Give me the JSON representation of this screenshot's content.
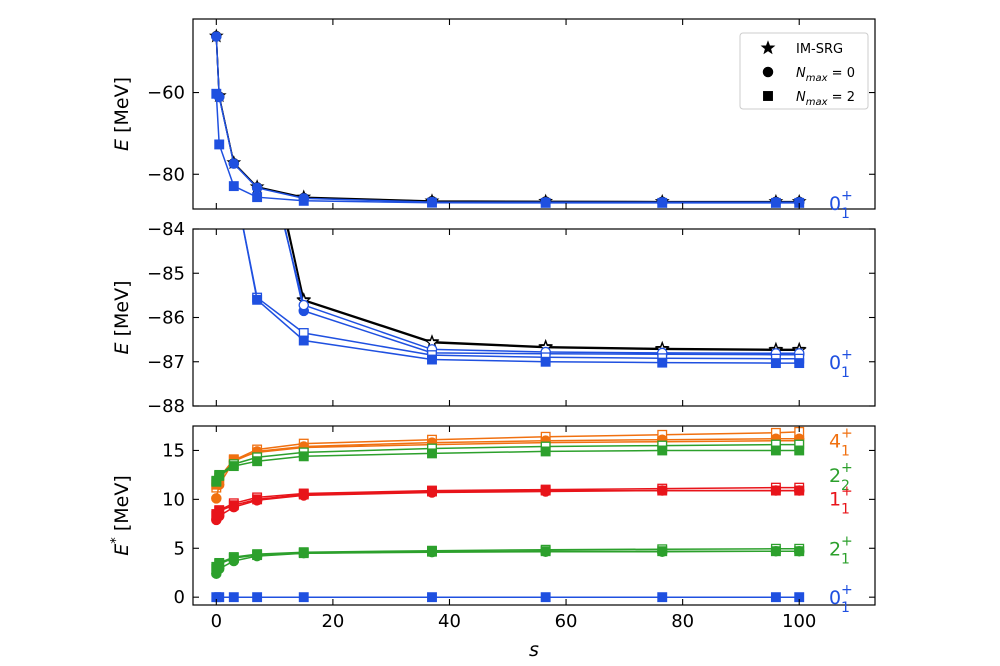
{
  "chart_data": [
    {
      "type": "line",
      "panel": "top",
      "ylabel": "E [MeV]",
      "ylabel_var": "E",
      "ylabel_unit": "[MeV]",
      "ylim": [
        -88.5,
        -42
      ],
      "yticks": [
        -60,
        -80
      ],
      "yticklabels": [
        "−60",
        "−80"
      ],
      "legend": {
        "placement": "top-right",
        "entries": [
          {
            "marker": "star",
            "label": "IM-SRG"
          },
          {
            "marker": "circle",
            "label": "N_max = 0"
          },
          {
            "marker": "square",
            "label": "N_max = 2"
          }
        ]
      },
      "state_labels": [
        {
          "label": "0",
          "sup": "+",
          "sub": "1",
          "color": "#1f50e0",
          "y": -87.0
        }
      ],
      "series": [
        {
          "marker": "star",
          "color": "#000000",
          "fill": true,
          "x": [
            0,
            0.5,
            3,
            7,
            15,
            37,
            56.5,
            76.5,
            96,
            100
          ],
          "y": [
            -46.2,
            -60.8,
            -77.2,
            -83.1,
            -85.6,
            -86.55,
            -86.65,
            -86.7,
            -86.7,
            -86.7
          ]
        },
        {
          "marker": "circle",
          "color": "#000000",
          "fill": true,
          "x": [
            0,
            0.5,
            3,
            7,
            15,
            37,
            56.5,
            76.5,
            96,
            100
          ],
          "y": [
            -46.2,
            -61.0,
            -77.3,
            -83.2,
            -85.8,
            -86.6,
            -86.7,
            -86.75,
            -86.75,
            -86.75
          ]
        },
        {
          "marker": "circle",
          "color": "#1f50e0",
          "fill": true,
          "x": [
            0,
            0.5,
            3,
            7,
            15,
            37,
            56.5,
            76.5,
            96,
            100
          ],
          "y": [
            -46.3,
            -61.1,
            -77.4,
            -83.3,
            -85.9,
            -86.8,
            -86.85,
            -86.85,
            -86.85,
            -86.85
          ]
        },
        {
          "marker": "square",
          "color": "#1f50e0",
          "fill": true,
          "x": [
            0,
            0.5,
            3,
            7,
            15,
            37,
            56.5,
            76.5,
            96,
            100
          ],
          "y": [
            -60.3,
            -72.7,
            -82.9,
            -85.6,
            -86.5,
            -86.95,
            -87.0,
            -87.0,
            -87.0,
            -87.0
          ]
        }
      ]
    },
    {
      "type": "line",
      "panel": "middle",
      "ylabel": "E [MeV]",
      "ylabel_var": "E",
      "ylabel_unit": "[MeV]",
      "ylim": [
        -88,
        -84
      ],
      "yticks": [
        -84,
        -85,
        -86,
        -87,
        -88
      ],
      "yticklabels": [
        "−84",
        "−85",
        "−86",
        "−87",
        "−88"
      ],
      "state_labels": [
        {
          "label": "0",
          "sup": "+",
          "sub": "1",
          "color": "#1f50e0",
          "y": -87.0
        }
      ],
      "series": [
        {
          "marker": "star",
          "color": "#000000",
          "fill": true,
          "x": [
            7,
            15,
            37,
            56.5,
            76.5,
            96,
            100
          ],
          "y": [
            -80.8,
            -85.6,
            -86.55,
            -86.66,
            -86.7,
            -86.72,
            -86.72
          ]
        },
        {
          "marker": "star",
          "color": "#000000",
          "fill": false,
          "x": [
            7,
            15,
            37,
            56.5,
            76.5,
            96,
            100
          ],
          "y": [
            -81.0,
            -85.62,
            -86.57,
            -86.68,
            -86.72,
            -86.74,
            -86.74
          ]
        },
        {
          "marker": "circle",
          "color": "#1f50e0",
          "fill": true,
          "x": [
            7,
            15,
            37,
            56.5,
            76.5,
            96,
            100
          ],
          "y": [
            -81.2,
            -85.85,
            -86.8,
            -86.82,
            -86.83,
            -86.84,
            -86.84
          ]
        },
        {
          "marker": "circle",
          "color": "#1f50e0",
          "fill": false,
          "x": [
            7,
            15,
            37,
            56.5,
            76.5,
            96,
            100
          ],
          "y": [
            -81.5,
            -85.72,
            -86.72,
            -86.78,
            -86.8,
            -86.81,
            -86.81
          ]
        },
        {
          "marker": "square",
          "color": "#1f50e0",
          "fill": false,
          "x": [
            3,
            7,
            15,
            37,
            56.5,
            76.5,
            96,
            100
          ],
          "y": [
            -82.9,
            -85.55,
            -86.35,
            -86.85,
            -86.9,
            -86.92,
            -86.93,
            -86.93
          ]
        },
        {
          "marker": "square",
          "color": "#1f50e0",
          "fill": true,
          "x": [
            3,
            7,
            15,
            37,
            56.5,
            76.5,
            96,
            100
          ],
          "y": [
            -82.9,
            -85.6,
            -86.52,
            -86.95,
            -87.0,
            -87.02,
            -87.03,
            -87.03
          ]
        }
      ]
    },
    {
      "type": "line",
      "panel": "bottom",
      "xlabel": "s",
      "xlim": [
        -4,
        113
      ],
      "xticks": [
        0,
        20,
        40,
        60,
        80,
        100
      ],
      "ylabel": "E* [MeV]",
      "ylabel_var": "E",
      "ylabel_sup": "*",
      "ylabel_unit": "[MeV]",
      "ylim": [
        -0.8,
        17.5
      ],
      "yticks": [
        0,
        5,
        10,
        15
      ],
      "yticklabels": [
        "0",
        "5",
        "10",
        "15"
      ],
      "state_labels": [
        {
          "label": "4",
          "sup": "+",
          "sub": "1",
          "color": "#f07010",
          "y": 16.0
        },
        {
          "label": "2",
          "sup": "+",
          "sub": "2",
          "color": "#2ca02c",
          "y": 12.5
        },
        {
          "label": "1",
          "sup": "+",
          "sub": "1",
          "color": "#e8141a",
          "y": 10.1
        },
        {
          "label": "2",
          "sup": "+",
          "sub": "1",
          "color": "#2ca02c",
          "y": 5.0
        },
        {
          "label": "0",
          "sup": "+",
          "sub": "1",
          "color": "#1f50e0",
          "y": 0.0
        }
      ],
      "series": [
        {
          "marker": "square",
          "color": "#f07010",
          "fill": false,
          "x": [
            0,
            0.5,
            3,
            7,
            15,
            37,
            56.5,
            76.5,
            96,
            100
          ],
          "y": [
            11.2,
            12.0,
            14.0,
            15.1,
            15.7,
            16.1,
            16.4,
            16.6,
            16.8,
            16.9
          ]
        },
        {
          "marker": "circle",
          "color": "#f07010",
          "fill": true,
          "x": [
            0,
            0.5,
            3,
            7,
            15,
            37,
            56.5,
            76.5,
            96,
            100
          ],
          "y": [
            10.1,
            11.5,
            13.9,
            14.9,
            15.4,
            15.8,
            16.0,
            16.1,
            16.2,
            16.2
          ]
        },
        {
          "marker": "square",
          "color": "#f07010",
          "fill": true,
          "x": [
            0,
            0.5,
            3,
            7,
            15,
            37,
            56.5,
            76.5,
            96,
            100
          ],
          "y": [
            11.5,
            12.2,
            14.1,
            14.8,
            15.3,
            15.6,
            15.8,
            15.9,
            16.0,
            16.0
          ]
        },
        {
          "marker": "square",
          "color": "#2ca02c",
          "fill": false,
          "x": [
            0,
            0.5,
            3,
            7,
            15,
            37,
            56.5,
            76.5,
            96,
            100
          ],
          "y": [
            11.8,
            12.5,
            13.6,
            14.3,
            14.8,
            15.2,
            15.4,
            15.5,
            15.6,
            15.6
          ]
        },
        {
          "marker": "square",
          "color": "#2ca02c",
          "fill": true,
          "x": [
            0,
            0.5,
            3,
            7,
            15,
            37,
            56.5,
            76.5,
            96,
            100
          ],
          "y": [
            11.9,
            12.4,
            13.4,
            13.9,
            14.4,
            14.7,
            14.9,
            15.0,
            15.0,
            15.0
          ]
        },
        {
          "marker": "square",
          "color": "#e8141a",
          "fill": false,
          "x": [
            0,
            0.5,
            3,
            7,
            15,
            37,
            56.5,
            76.5,
            96,
            100
          ],
          "y": [
            8.3,
            8.9,
            9.6,
            10.2,
            10.6,
            10.9,
            11.0,
            11.1,
            11.2,
            11.2
          ]
        },
        {
          "marker": "circle",
          "color": "#e8141a",
          "fill": true,
          "x": [
            0,
            0.5,
            3,
            7,
            15,
            37,
            56.5,
            76.5,
            96,
            100
          ],
          "y": [
            7.9,
            8.3,
            9.2,
            9.9,
            10.4,
            10.7,
            10.8,
            10.9,
            10.9,
            10.9
          ]
        },
        {
          "marker": "square",
          "color": "#e8141a",
          "fill": true,
          "x": [
            0,
            0.5,
            3,
            7,
            15,
            37,
            56.5,
            76.5,
            96,
            100
          ],
          "y": [
            8.5,
            8.8,
            9.4,
            10.0,
            10.5,
            10.8,
            10.9,
            10.9,
            10.9,
            10.9
          ]
        },
        {
          "marker": "square",
          "color": "#2ca02c",
          "fill": false,
          "x": [
            0,
            0.5,
            3,
            7,
            15,
            37,
            56.5,
            76.5,
            96,
            100
          ],
          "y": [
            2.9,
            3.5,
            4.1,
            4.4,
            4.6,
            4.75,
            4.85,
            4.9,
            4.95,
            4.95
          ]
        },
        {
          "marker": "circle",
          "color": "#2ca02c",
          "fill": true,
          "x": [
            0,
            0.5,
            3,
            7,
            15,
            37,
            56.5,
            76.5,
            96,
            100
          ],
          "y": [
            2.4,
            2.9,
            3.7,
            4.2,
            4.5,
            4.6,
            4.65,
            4.65,
            4.7,
            4.7
          ]
        },
        {
          "marker": "square",
          "color": "#2ca02c",
          "fill": true,
          "x": [
            0,
            0.5,
            3,
            7,
            15,
            37,
            56.5,
            76.5,
            96,
            100
          ],
          "y": [
            3.1,
            3.4,
            4.0,
            4.3,
            4.5,
            4.65,
            4.7,
            4.7,
            4.7,
            4.7
          ]
        },
        {
          "marker": "square",
          "color": "#1f50e0",
          "fill": true,
          "x": [
            0,
            0.5,
            3,
            7,
            15,
            37,
            56.5,
            76.5,
            96,
            100
          ],
          "y": [
            0,
            0,
            0,
            0,
            0,
            0,
            0,
            0,
            0,
            0
          ]
        }
      ]
    }
  ]
}
